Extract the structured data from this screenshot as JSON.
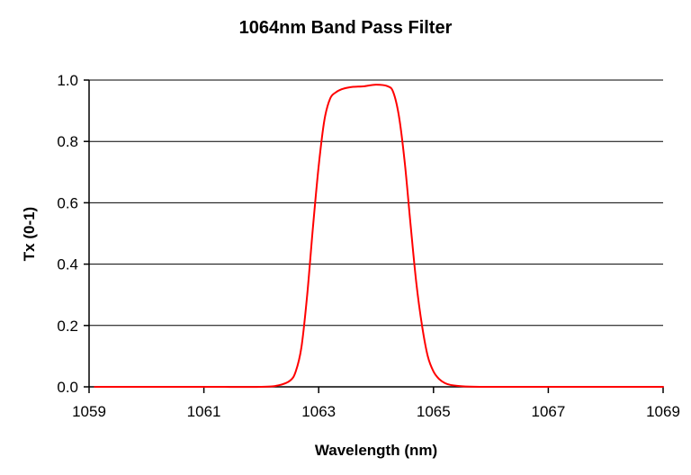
{
  "chart_data": {
    "type": "line",
    "title": "1064nm Band Pass Filter",
    "xlabel": "Wavelength (nm)",
    "ylabel": "Tx (0-1)",
    "xlim": [
      1059,
      1069
    ],
    "ylim": [
      0,
      1
    ],
    "x_ticks": [
      "1059",
      "1061",
      "1063",
      "1065",
      "1067",
      "1069"
    ],
    "y_ticks": [
      "0.0",
      "0.2",
      "0.4",
      "0.6",
      "0.8",
      "1.0"
    ],
    "grid": true,
    "legend": "none",
    "series": [
      {
        "color": "#ff0000",
        "x": [
          1059.1,
          1060,
          1061,
          1062,
          1062.3,
          1062.5,
          1062.6,
          1062.7,
          1062.8,
          1062.9,
          1063.0,
          1063.1,
          1063.2,
          1063.3,
          1063.4,
          1063.5,
          1063.6,
          1063.8,
          1064.0,
          1064.2,
          1064.3,
          1064.4,
          1064.5,
          1064.6,
          1064.7,
          1064.8,
          1064.9,
          1065.0,
          1065.1,
          1065.2,
          1065.3,
          1065.5,
          1065.8,
          1066,
          1067,
          1068,
          1069
        ],
        "y": [
          0.0,
          0.0,
          0.0,
          0.0,
          0.005,
          0.02,
          0.05,
          0.13,
          0.3,
          0.52,
          0.72,
          0.87,
          0.94,
          0.96,
          0.97,
          0.975,
          0.978,
          0.98,
          0.985,
          0.98,
          0.96,
          0.88,
          0.73,
          0.53,
          0.34,
          0.2,
          0.1,
          0.05,
          0.025,
          0.012,
          0.006,
          0.002,
          0.0,
          0.0,
          0.0,
          0.0,
          0.0
        ]
      }
    ]
  }
}
